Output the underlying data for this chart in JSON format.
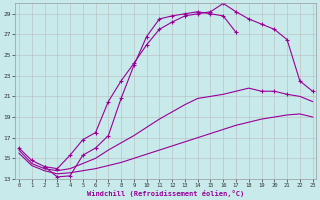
{
  "xlabel": "Windchill (Refroidissement éolien,°C)",
  "bg_color": "#c8eaea",
  "line_color": "#990099",
  "grid_color": "#bbbbbb",
  "xmin": 0,
  "xmax": 23,
  "ymin": 13,
  "ymax": 30,
  "yticks": [
    13,
    15,
    17,
    19,
    21,
    23,
    25,
    27,
    29
  ],
  "xticks": [
    0,
    1,
    2,
    3,
    4,
    5,
    6,
    7,
    8,
    9,
    10,
    11,
    12,
    13,
    14,
    15,
    16,
    17,
    18,
    19,
    20,
    21,
    22,
    23
  ],
  "line1_x": [
    0,
    1,
    2,
    3,
    4,
    5,
    6,
    7,
    8,
    9,
    10,
    11,
    12,
    13,
    14,
    15,
    16,
    17,
    18,
    19,
    20,
    21,
    22,
    23
  ],
  "line1_y": [
    16.0,
    14.8,
    14.2,
    14.0,
    15.3,
    16.8,
    17.5,
    20.5,
    22.5,
    24.2,
    26.0,
    27.5,
    28.2,
    28.8,
    29.0,
    29.2,
    30.0,
    29.2,
    28.5,
    28.0,
    27.5,
    26.5,
    22.5,
    21.5
  ],
  "line2_x": [
    2,
    3,
    4,
    5,
    6,
    7,
    8,
    9,
    10,
    11,
    12,
    13,
    14,
    15,
    16,
    17
  ],
  "line2_y": [
    14.2,
    13.2,
    13.3,
    15.3,
    16.0,
    17.2,
    20.8,
    24.0,
    26.8,
    28.5,
    28.8,
    29.0,
    29.2,
    29.0,
    28.8,
    27.2
  ],
  "line3_x": [
    0,
    1,
    2,
    3,
    4,
    5,
    6,
    7,
    8,
    9,
    10,
    11,
    12,
    13,
    14,
    15,
    16,
    17,
    18,
    19,
    20,
    21,
    22,
    23
  ],
  "line3_y": [
    15.8,
    14.5,
    14.0,
    13.8,
    14.0,
    14.5,
    15.0,
    15.8,
    16.5,
    17.2,
    18.0,
    18.8,
    19.5,
    20.2,
    20.8,
    21.0,
    21.2,
    21.5,
    21.8,
    21.5,
    21.5,
    21.2,
    21.0,
    20.5
  ],
  "line4_x": [
    0,
    1,
    2,
    3,
    4,
    5,
    6,
    7,
    8,
    9,
    10,
    11,
    12,
    13,
    14,
    15,
    16,
    17,
    18,
    19,
    20,
    21,
    22,
    23
  ],
  "line4_y": [
    15.5,
    14.3,
    13.8,
    13.5,
    13.6,
    13.8,
    14.0,
    14.3,
    14.6,
    15.0,
    15.4,
    15.8,
    16.2,
    16.6,
    17.0,
    17.4,
    17.8,
    18.2,
    18.5,
    18.8,
    19.0,
    19.2,
    19.3,
    19.0
  ]
}
